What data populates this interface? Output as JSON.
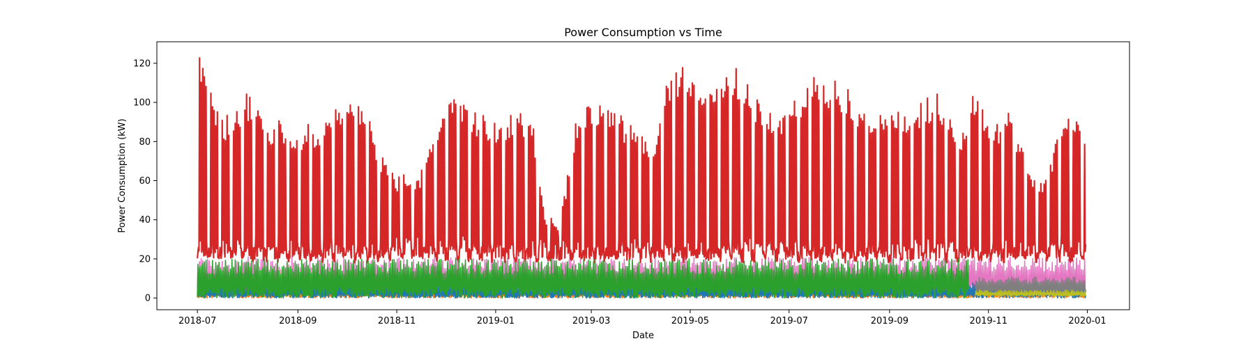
{
  "chart_data": {
    "type": "line",
    "title": "Power Consumption vs Time",
    "xlabel": "Date",
    "ylabel": "Power Consumption (kW)",
    "xlim": [
      "2018-06-06",
      "2020-01-27"
    ],
    "ylim": [
      -6,
      131
    ],
    "x_ticks": [
      "2018-07",
      "2018-09",
      "2018-11",
      "2019-01",
      "2019-03",
      "2019-05",
      "2019-07",
      "2019-09",
      "2019-11",
      "2020-01"
    ],
    "y_ticks": [
      0,
      20,
      40,
      60,
      80,
      100,
      120
    ],
    "grid": false,
    "legend": "none",
    "series": [
      {
        "color": "#d62728",
        "date_range": [
          "2018-07-01",
          "2019-12-31"
        ],
        "weekly_peak_kw": [
          [
            "2018-07-01",
            126
          ],
          [
            "2018-07-15",
            92
          ],
          [
            "2018-08-01",
            105
          ],
          [
            "2018-08-15",
            92
          ],
          [
            "2018-09-01",
            88
          ],
          [
            "2018-09-15",
            90
          ],
          [
            "2018-10-01",
            101
          ],
          [
            "2018-10-15",
            95
          ],
          [
            "2018-10-22",
            75
          ],
          [
            "2018-11-01",
            63
          ],
          [
            "2018-11-15",
            64
          ],
          [
            "2018-11-25",
            88
          ],
          [
            "2018-12-05",
            107
          ],
          [
            "2018-12-15",
            97
          ],
          [
            "2019-01-01",
            92
          ],
          [
            "2019-01-15",
            97
          ],
          [
            "2019-01-25",
            86
          ],
          [
            "2019-02-01",
            42
          ],
          [
            "2019-02-10",
            40
          ],
          [
            "2019-02-20",
            93
          ],
          [
            "2019-03-01",
            101
          ],
          [
            "2019-03-15",
            96
          ],
          [
            "2019-04-01",
            85
          ],
          [
            "2019-04-10",
            80
          ],
          [
            "2019-04-15",
            108
          ],
          [
            "2019-04-28",
            121
          ],
          [
            "2019-05-15",
            110
          ],
          [
            "2019-06-01",
            119
          ],
          [
            "2019-06-15",
            96
          ],
          [
            "2019-07-01",
            97
          ],
          [
            "2019-07-15",
            113
          ],
          [
            "2019-08-01",
            112
          ],
          [
            "2019-08-15",
            100
          ],
          [
            "2019-09-01",
            95
          ],
          [
            "2019-09-15",
            97
          ],
          [
            "2019-10-01",
            107
          ],
          [
            "2019-10-15",
            85
          ],
          [
            "2019-10-25",
            110
          ],
          [
            "2019-11-01",
            90
          ],
          [
            "2019-11-15",
            95
          ],
          [
            "2019-12-01",
            58
          ],
          [
            "2019-12-10",
            70
          ],
          [
            "2019-12-15",
            95
          ],
          [
            "2019-12-31",
            88
          ]
        ],
        "base_kw": 20
      },
      {
        "color": "#2ca02c",
        "date_range": [
          "2018-07-01",
          "2019-10-20"
        ],
        "peak_kw": 20,
        "base_kw": 0
      },
      {
        "color": "#1f77b4",
        "date_range": [
          "2018-07-01",
          "2019-12-31"
        ],
        "peak_kw": 8,
        "base_kw": 0
      },
      {
        "color": "#e377c2",
        "date_range": [
          "2018-07-01",
          "2019-12-31"
        ],
        "peak_kw": 21,
        "base_kw": 2
      },
      {
        "color": "#ff7f0e",
        "date_range": [
          "2018-07-01",
          "2019-12-31"
        ],
        "peak_kw": 6,
        "base_kw": 0
      },
      {
        "color": "#bcbd22",
        "date_range": [
          "2019-10-24",
          "2019-12-31"
        ],
        "peak_kw": 4,
        "base_kw": 1
      },
      {
        "color": "#7f7f7f",
        "date_range": [
          "2019-10-24",
          "2019-12-31"
        ],
        "peak_kw": 11,
        "base_kw": 2
      }
    ]
  }
}
